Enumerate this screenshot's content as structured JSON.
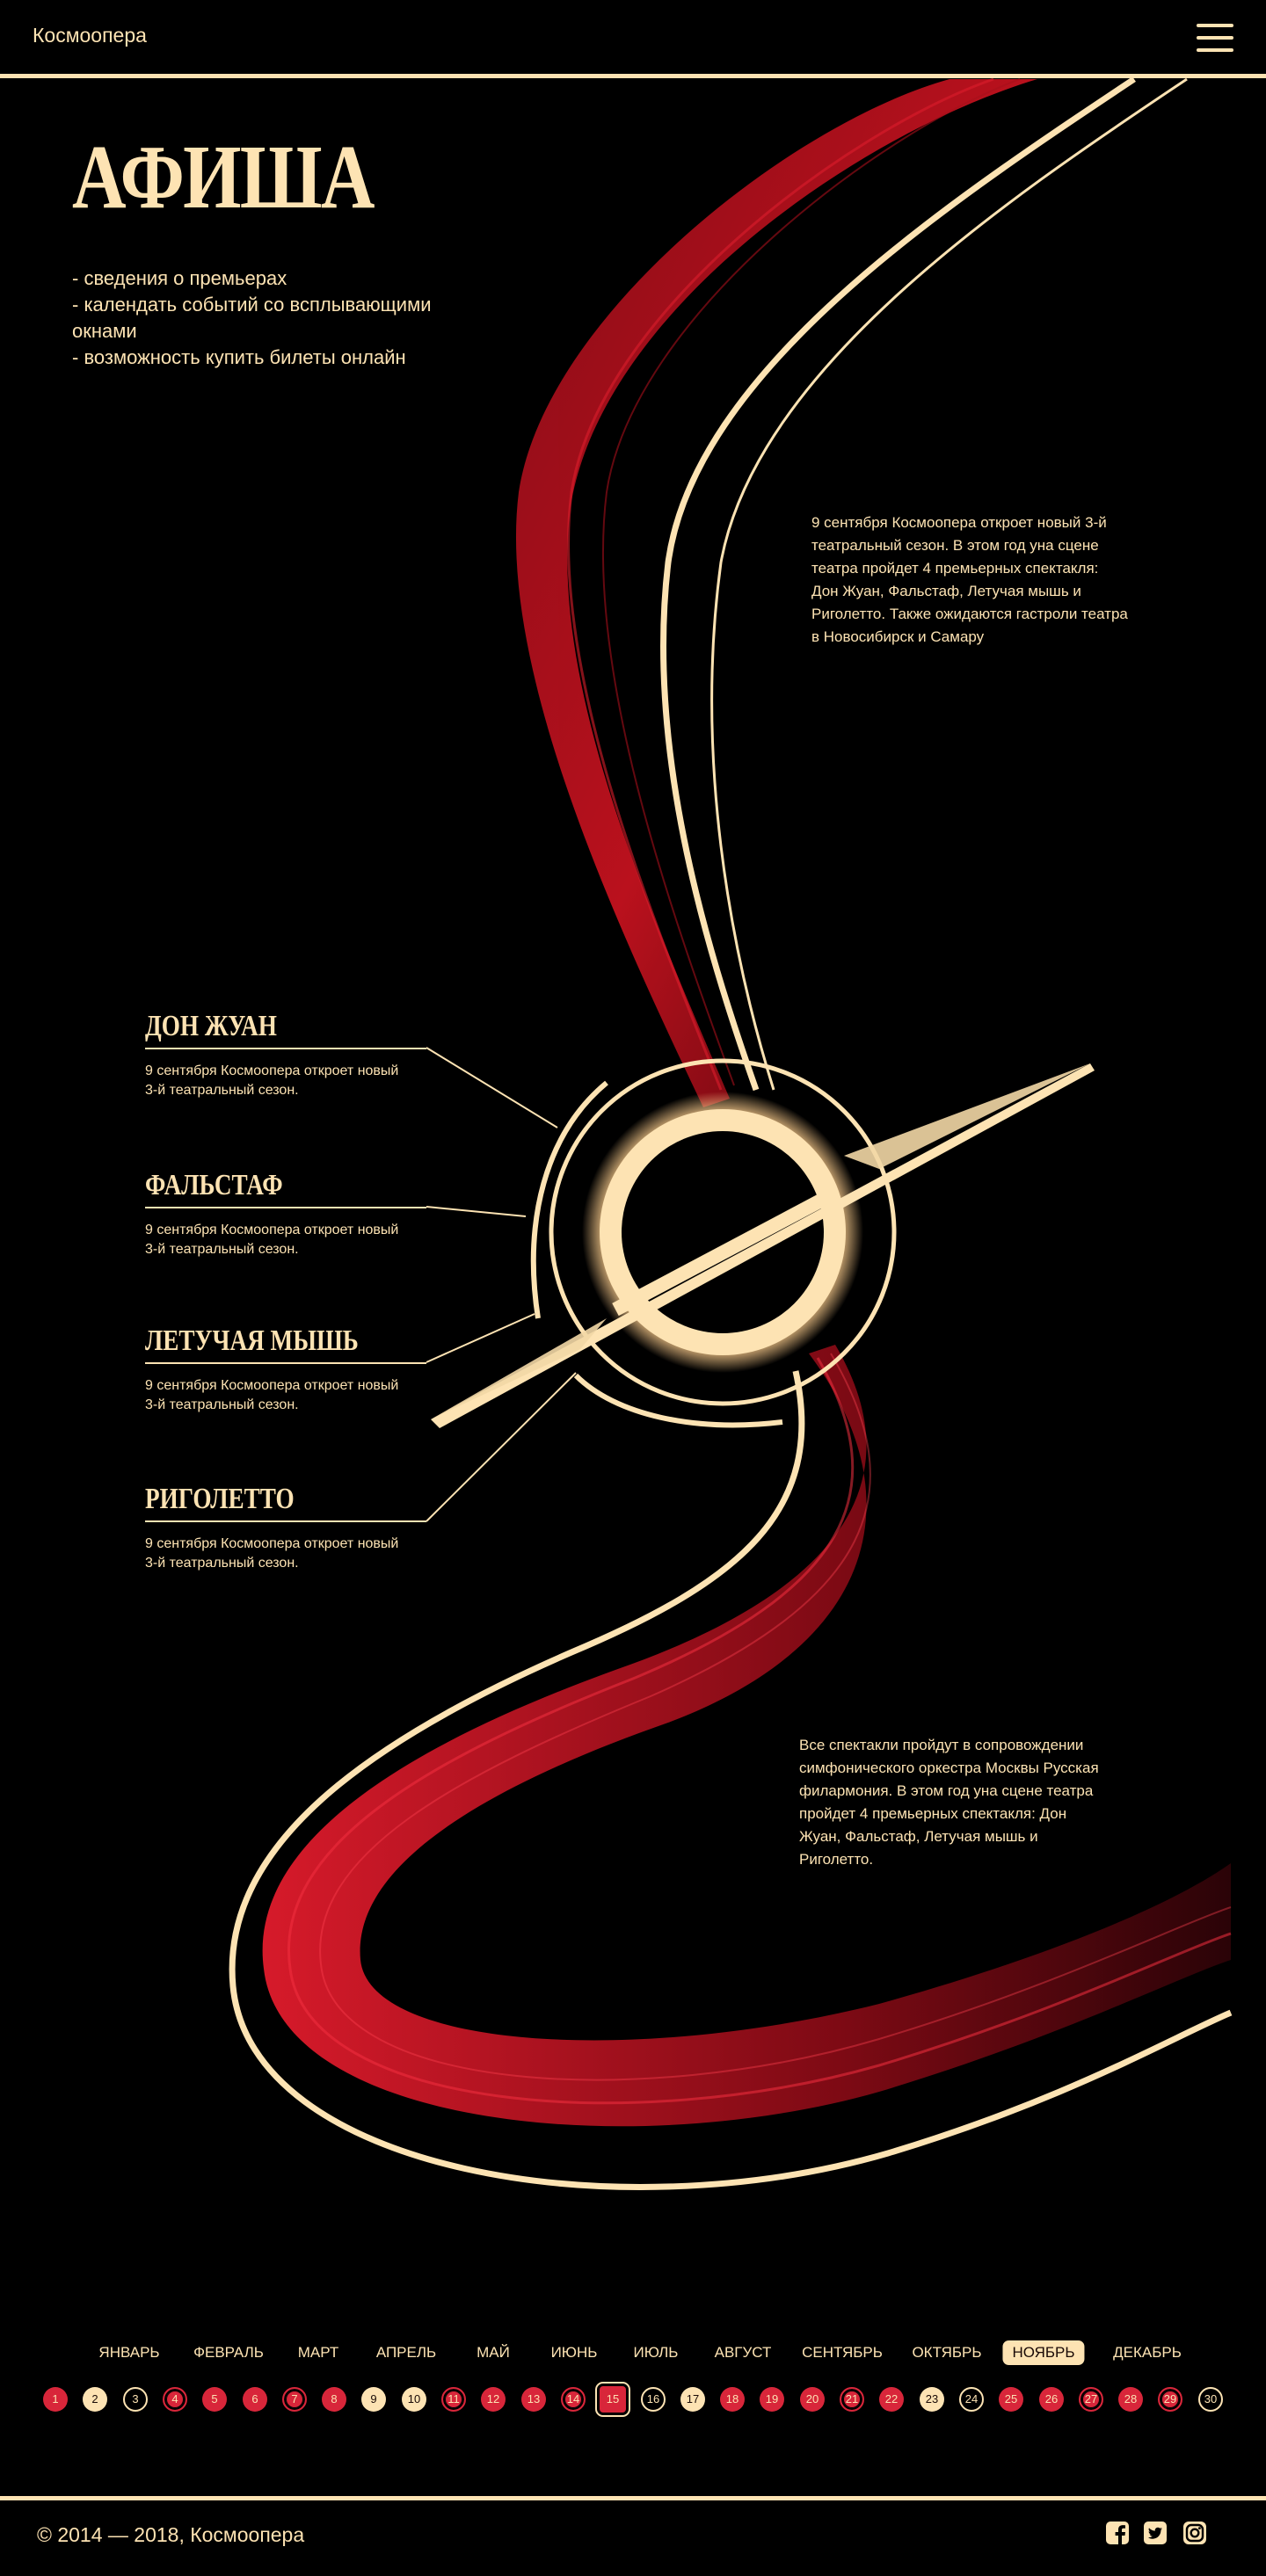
{
  "header": {
    "brand": "Космоопера",
    "menu_icon": "hamburger-menu-icon"
  },
  "hero": {
    "title": "АФИША",
    "features": [
      "- сведения о премьерах",
      "- календать событий со всплывающими окнами",
      "- возможность купить билеты онлайн"
    ]
  },
  "notes": {
    "top": "9 сентября Космоопера откроет новый 3-й театральный сезон. В этом год уна сцене театра пройдет 4 премьерных спектакля: Дон Жуан, Фальстаф, Летучая мышь и Риголетто. Также ожидаются гастроли театра в Новосибирск и Самару",
    "bottom": "Все спектакли пройдут в сопровождении симфонического оркестра Москвы Русская филармония.  В этом год уна сцене театра пройдет 4 премьерных спектакля: Дон Жуан, Фальстаф, Летучая мышь и Риголетто."
  },
  "shows": [
    {
      "title": "ДОН ЖУАН",
      "desc": "9 сентября Космоопера откроет новый 3-й театральный сезон."
    },
    {
      "title": "ФАЛЬСТАФ",
      "desc": "9 сентября Космоопера откроет новый 3-й театральный сезон."
    },
    {
      "title": "ЛЕТУЧАЯ МЫШЬ",
      "desc": "9 сентября Космоопера откроет новый 3-й театральный сезон."
    },
    {
      "title": "РИГОЛЕТТО",
      "desc": "9 сентября Космоопера откроет новый 3-й театральный сезон."
    }
  ],
  "calendar": {
    "months": [
      "ЯНВАРЬ",
      "ФЕВРАЛЬ",
      "МАРТ",
      "АПРЕЛЬ",
      "МАЙ",
      "ИЮНЬ",
      "ИЮЛЬ",
      "АВГУСТ",
      "СЕНТЯБРЬ",
      "ОКТЯБРЬ",
      "НОЯБРЬ",
      "ДЕКАБРЬ"
    ],
    "active_month": "НОЯБРЬ",
    "selected_day": "15",
    "days": [
      {
        "n": "1",
        "type": "red"
      },
      {
        "n": "2",
        "type": "cream"
      },
      {
        "n": "3",
        "type": "outline"
      },
      {
        "n": "4",
        "type": "red-outline"
      },
      {
        "n": "5",
        "type": "red"
      },
      {
        "n": "6",
        "type": "red"
      },
      {
        "n": "7",
        "type": "red-outline"
      },
      {
        "n": "8",
        "type": "red"
      },
      {
        "n": "9",
        "type": "cream"
      },
      {
        "n": "10",
        "type": "cream"
      },
      {
        "n": "11",
        "type": "red-outline"
      },
      {
        "n": "12",
        "type": "red"
      },
      {
        "n": "13",
        "type": "red"
      },
      {
        "n": "14",
        "type": "red-outline"
      },
      {
        "n": "15",
        "type": "today"
      },
      {
        "n": "16",
        "type": "outline"
      },
      {
        "n": "17",
        "type": "cream"
      },
      {
        "n": "18",
        "type": "red"
      },
      {
        "n": "19",
        "type": "red"
      },
      {
        "n": "20",
        "type": "red"
      },
      {
        "n": "21",
        "type": "red-outline"
      },
      {
        "n": "22",
        "type": "red"
      },
      {
        "n": "23",
        "type": "cream"
      },
      {
        "n": "24",
        "type": "outline"
      },
      {
        "n": "25",
        "type": "red"
      },
      {
        "n": "26",
        "type": "red"
      },
      {
        "n": "27",
        "type": "red-outline"
      },
      {
        "n": "28",
        "type": "red"
      },
      {
        "n": "29",
        "type": "red-outline"
      },
      {
        "n": "30",
        "type": "outline"
      }
    ]
  },
  "footer": {
    "copyright": "© 2014 — 2018, Космоопера",
    "social": [
      "facebook-icon",
      "twitter-icon",
      "instagram-icon"
    ]
  },
  "colors": {
    "background": "#000000",
    "cream": "#fde3b3",
    "red": "#d8263a",
    "dark_red": "#5a0710"
  }
}
